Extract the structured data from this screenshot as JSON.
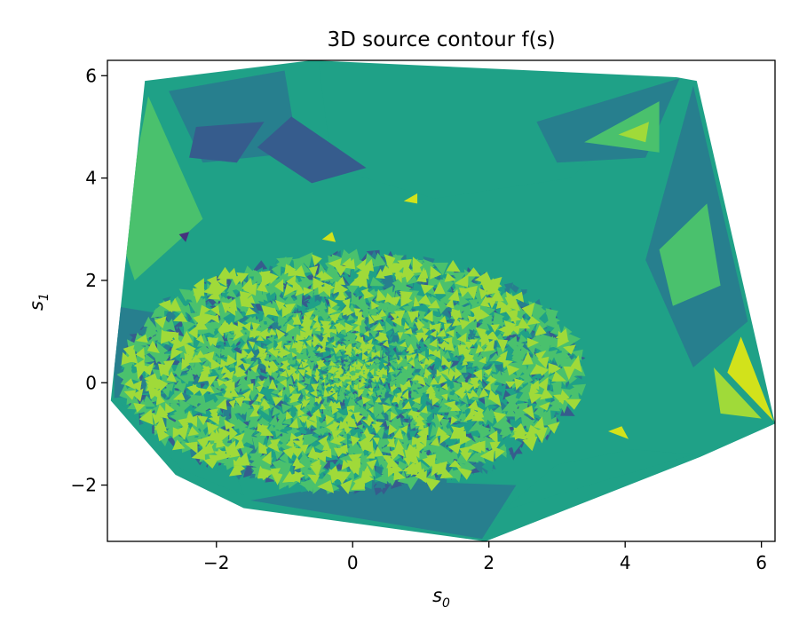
{
  "chart_data": {
    "type": "contour",
    "title": "3D source contour f(s)",
    "xlabel": "s",
    "xlabel_sub": "0",
    "ylabel": "s",
    "ylabel_sub": "1",
    "xlim": [
      -3.6,
      6.2
    ],
    "ylim": [
      -3.1,
      6.3
    ],
    "xticks": [
      -2,
      0,
      2,
      4,
      6
    ],
    "yticks": [
      -2,
      0,
      2,
      4,
      6
    ],
    "xtick_labels": [
      "−2",
      "0",
      "2",
      "4",
      "6"
    ],
    "ytick_labels": [
      "−2",
      "0",
      "2",
      "4",
      "6"
    ],
    "colormap": "viridis",
    "level_colors": [
      "#46327e",
      "#365c8d",
      "#277f8e",
      "#1fa187",
      "#4ac16d",
      "#a0da39",
      "#d2e21b"
    ],
    "domain_hull": [
      [
        -3.55,
        -0.35
      ],
      [
        -3.05,
        5.9
      ],
      [
        -0.6,
        6.3
      ],
      [
        4.75,
        5.97
      ],
      [
        5.05,
        5.9
      ],
      [
        6.2,
        -0.8
      ],
      [
        5.1,
        -1.45
      ],
      [
        1.95,
        -3.1
      ],
      [
        -1.6,
        -2.45
      ],
      [
        -2.6,
        -1.8
      ]
    ],
    "regions": [
      {
        "level": 3,
        "points": [
          [
            -0.5,
            6.25
          ],
          [
            4.7,
            5.95
          ],
          [
            3.2,
            4.0
          ],
          [
            1.2,
            3.6
          ],
          [
            -0.3,
            4.2
          ]
        ]
      },
      {
        "level": 2,
        "points": [
          [
            -2.7,
            5.7
          ],
          [
            -1.0,
            6.1
          ],
          [
            -0.8,
            4.5
          ],
          [
            -2.2,
            4.3
          ]
        ]
      },
      {
        "level": 1,
        "points": [
          [
            -2.3,
            5.0
          ],
          [
            -1.3,
            5.1
          ],
          [
            -1.7,
            4.3
          ],
          [
            -2.4,
            4.4
          ]
        ]
      },
      {
        "level": 1,
        "points": [
          [
            -0.9,
            5.2
          ],
          [
            0.2,
            4.2
          ],
          [
            -0.6,
            3.9
          ],
          [
            -1.4,
            4.6
          ]
        ]
      },
      {
        "level": 2,
        "points": [
          [
            2.7,
            5.1
          ],
          [
            4.8,
            5.95
          ],
          [
            4.3,
            4.4
          ],
          [
            3.0,
            4.3
          ]
        ]
      },
      {
        "level": 4,
        "points": [
          [
            3.4,
            4.7
          ],
          [
            4.5,
            5.5
          ],
          [
            4.5,
            4.5
          ]
        ]
      },
      {
        "level": 5,
        "points": [
          [
            3.9,
            4.85
          ],
          [
            4.35,
            5.1
          ],
          [
            4.3,
            4.7
          ]
        ]
      },
      {
        "level": 2,
        "points": [
          [
            5.0,
            5.8
          ],
          [
            5.8,
            1.2
          ],
          [
            5.0,
            0.3
          ],
          [
            4.3,
            2.4
          ]
        ]
      },
      {
        "level": 4,
        "points": [
          [
            4.5,
            2.6
          ],
          [
            5.2,
            3.5
          ],
          [
            5.4,
            1.9
          ],
          [
            4.7,
            1.5
          ]
        ]
      },
      {
        "level": 6,
        "points": [
          [
            5.5,
            0.2
          ],
          [
            6.18,
            -0.75
          ],
          [
            5.7,
            0.9
          ]
        ]
      },
      {
        "level": 5,
        "points": [
          [
            5.3,
            0.3
          ],
          [
            6.0,
            -0.7
          ],
          [
            5.4,
            -0.6
          ]
        ]
      },
      {
        "level": 4,
        "points": [
          [
            -3.0,
            5.6
          ],
          [
            -2.2,
            3.2
          ],
          [
            -3.2,
            2.0
          ],
          [
            -3.4,
            2.8
          ]
        ]
      },
      {
        "level": 2,
        "points": [
          [
            -3.5,
            1.5
          ],
          [
            -2.6,
            1.3
          ],
          [
            -3.0,
            -0.2
          ],
          [
            -3.5,
            -0.3
          ]
        ]
      },
      {
        "level": 1,
        "points": [
          [
            -2.9,
            0.8
          ],
          [
            -2.3,
            0.6
          ],
          [
            -2.8,
            -0.2
          ]
        ]
      },
      {
        "level": 3,
        "points": [
          [
            -3.4,
            -0.4
          ],
          [
            -2.2,
            -0.1
          ],
          [
            -1.6,
            -2.2
          ],
          [
            -2.5,
            -1.7
          ]
        ]
      },
      {
        "level": 2,
        "points": [
          [
            -1.5,
            -2.3
          ],
          [
            1.9,
            -3.05
          ],
          [
            2.4,
            -2.0
          ],
          [
            0.2,
            -1.9
          ]
        ]
      },
      {
        "level": 3,
        "points": [
          [
            2.2,
            -2.5
          ],
          [
            5.0,
            -1.4
          ],
          [
            4.1,
            -1.3
          ],
          [
            3.0,
            -1.6
          ]
        ]
      },
      {
        "level": 6,
        "points": [
          [
            3.75,
            -0.95
          ],
          [
            4.05,
            -1.1
          ],
          [
            3.95,
            -0.85
          ]
        ]
      },
      {
        "level": 6,
        "points": [
          [
            -0.45,
            2.8
          ],
          [
            -0.3,
            2.95
          ],
          [
            -0.25,
            2.75
          ]
        ]
      },
      {
        "level": 6,
        "points": [
          [
            0.75,
            3.55
          ],
          [
            0.95,
            3.7
          ],
          [
            0.95,
            3.5
          ]
        ]
      },
      {
        "level": 0,
        "points": [
          [
            -2.55,
            2.9
          ],
          [
            -2.4,
            2.95
          ],
          [
            -2.45,
            2.75
          ]
        ]
      }
    ],
    "noise_center": [
      0.0,
      0.2
    ],
    "noise_radii": [
      2.8,
      1.9
    ]
  }
}
